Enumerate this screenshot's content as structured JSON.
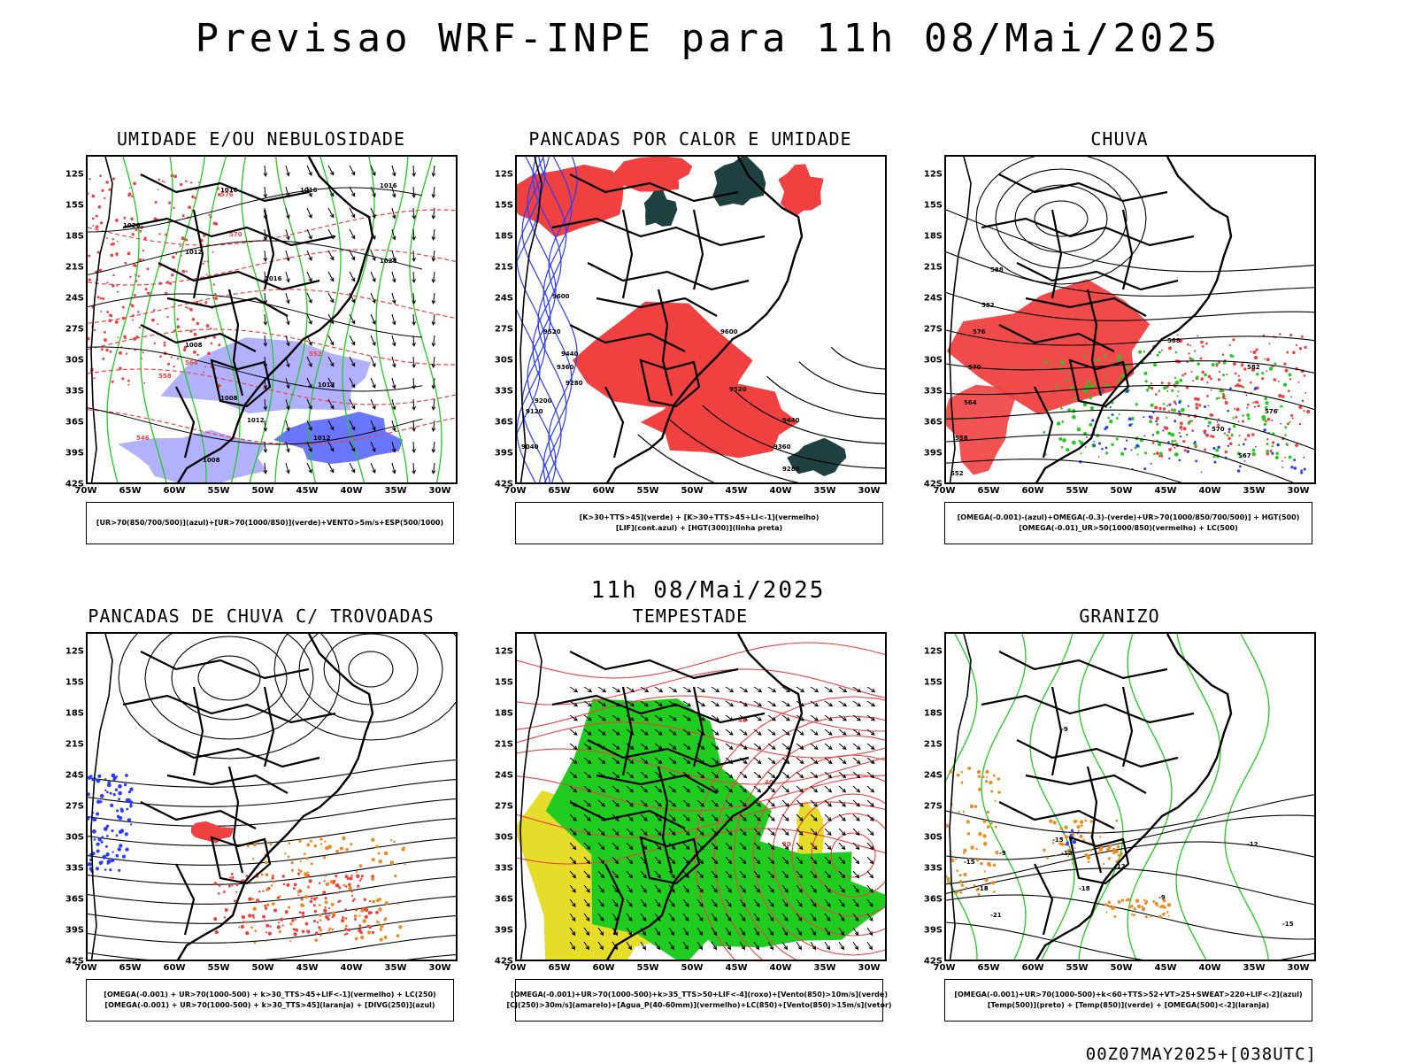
{
  "header": {
    "title": "Previsao WRF-INPE  para 11h 08/Mai/2025"
  },
  "middle": {
    "title": "11h 08/Mai/2025"
  },
  "footer": {
    "run": "00Z07MAY2025+[038UTC]"
  },
  "axes": {
    "lat_labels": [
      "12S",
      "15S",
      "18S",
      "21S",
      "24S",
      "27S",
      "30S",
      "33S",
      "36S",
      "39S",
      "42S"
    ],
    "lon_labels": [
      "70W",
      "65W",
      "60W",
      "55W",
      "50W",
      "45W",
      "40W",
      "35W",
      "30W"
    ]
  },
  "colors": {
    "red": "#f04040",
    "green": "#1fcc1f",
    "blue": "#2a3cff",
    "lightblue": "#a8a8ff",
    "orange": "#ee8a1e",
    "yellow": "#e6dc2a",
    "darkteal": "#1f4040",
    "black": "#000000"
  },
  "panels": [
    {
      "id": "umidade",
      "title": "UMIDADE E/OU NEBULOSIDADE",
      "legend": [
        "[UR>70(850/700/500)](azul)+[UR>70(1000/850)](verde)+VENTO>5m/s+ESP(500/1000)"
      ],
      "contour_labels": [
        "1016",
        "1016",
        "1016",
        "1020",
        "1012",
        "1016",
        "1028",
        "1008",
        "1008",
        "1012",
        "1008",
        "1012",
        "1012",
        "576",
        "570",
        "564",
        "558",
        "552",
        "546"
      ]
    },
    {
      "id": "pancadas-calor",
      "title": "PANCADAS POR CALOR E UMIDADE",
      "legend": [
        "[K>30+TTS>45](verde) + [K>30+TTS>45+LI<-1](vermelho)",
        "[LIF](cont.azul) + [HGT(300)](linha preta)"
      ],
      "contour_labels": [
        "9600",
        "9520",
        "9440",
        "9360",
        "9280",
        "9200",
        "9120",
        "9600",
        "9520",
        "9440",
        "9360",
        "9280",
        "9040"
      ]
    },
    {
      "id": "chuva",
      "title": "CHUVA",
      "legend": [
        "[OMEGA(-0.001)-(azul)+OMEGA(-0.3)-(verde)+UR>70(1000/850/700/500)] + HGT(500)",
        "[OMEGA(-0.01)_UR>50(1000/850)(vermelho) + LC(500)"
      ],
      "contour_labels": [
        "588",
        "582",
        "576",
        "570",
        "564",
        "558",
        "552",
        "588",
        "582",
        "576",
        "570",
        "567"
      ]
    },
    {
      "id": "pancadas-trovoadas",
      "title": "PANCADAS DE CHUVA C/ TROVOADAS",
      "legend": [
        "[OMEGA(-0.001) + UR>70(1000-500) + k>30_TTS>45+LIF<-1](vermelho) + LC(250)",
        "[OMEGA(-0.001) + UR>70(1000-500) + k>30_TTS>45](laranja) + [DIVG(250)](azul)"
      ],
      "contour_labels": []
    },
    {
      "id": "tempestade",
      "title": "TEMPESTADE",
      "legend": [
        "[OMEGA(-0.001)+UR>70(1000-500)+k>35_TTS>50+LIF<-4](roxo)+[Vento(850)>10m/s](verde)",
        "[CJ(250)>30m/s](amarelo)+[Agua_P(40-60mm)](vermelho)+LC(850)+[Vento(850)>15m/s](vetor)"
      ],
      "contour_labels": [
        "40",
        "30",
        "40"
      ]
    },
    {
      "id": "granizo",
      "title": "GRANIZO",
      "legend": [
        "[OMEGA(-0.001)+UR>70(1000-500)+k<60+TTS>52+VT>25+SWEAT>220+LIF<-2](azul)",
        "[Temp(500)](preto) + [Temp(850)](verde) + [OMEGA(500)<-2](laranja)"
      ],
      "contour_labels": [
        "-9",
        "-12",
        "-15",
        "-18",
        "-21",
        "-9",
        "-12",
        "-15",
        "-18",
        "-9",
        "-12",
        "-15"
      ]
    }
  ]
}
